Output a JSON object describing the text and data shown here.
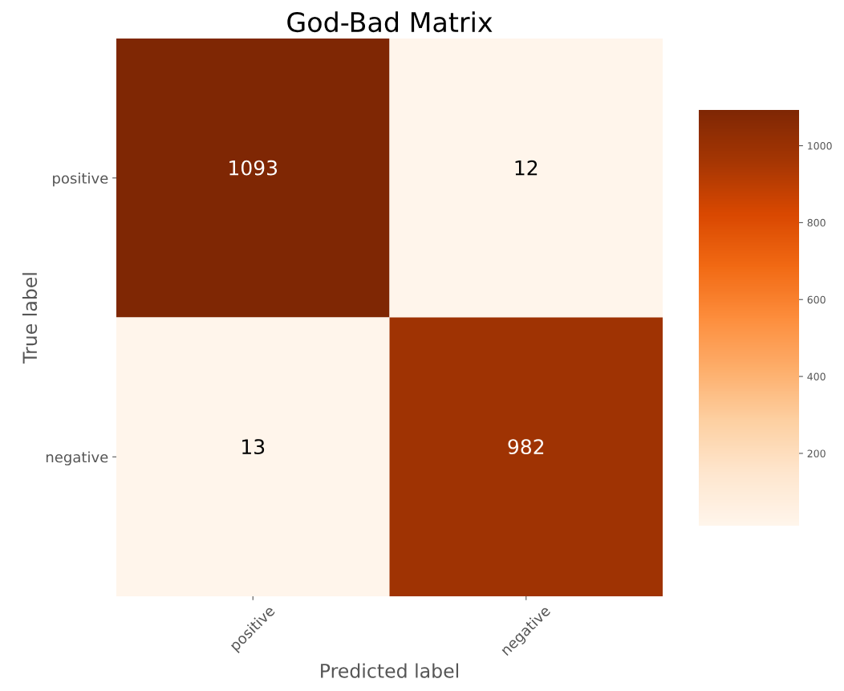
{
  "chart_data": {
    "type": "heatmap",
    "title": "God-Bad Matrix",
    "xlabel": "Predicted label",
    "ylabel": "True label",
    "categories": [
      "positive",
      "negative"
    ],
    "y_categories": [
      "positive",
      "negative"
    ],
    "cells": [
      [
        1093,
        12
      ],
      [
        13,
        982
      ]
    ],
    "clim": [
      12,
      1093
    ],
    "cticks": [
      200,
      400,
      600,
      800,
      1000
    ],
    "data_labels": true,
    "grid": false
  }
}
